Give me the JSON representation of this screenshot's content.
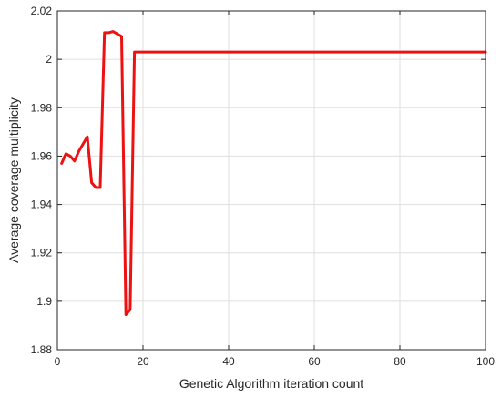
{
  "chart_data": {
    "type": "line",
    "title": "",
    "xlabel": "Genetic Algorithm iteration count",
    "ylabel": "Average coverage multiplicity",
    "xlim": [
      0,
      100
    ],
    "ylim": [
      1.88,
      2.02
    ],
    "xticks": [
      0,
      20,
      40,
      60,
      80,
      100
    ],
    "xtick_labels": [
      "0",
      "20",
      "40",
      "60",
      "80",
      "100"
    ],
    "yticks": [
      1.88,
      1.9,
      1.92,
      1.94,
      1.96,
      1.98,
      2.0,
      2.02
    ],
    "ytick_labels": [
      "1.88",
      "1.9",
      "1.92",
      "1.94",
      "1.96",
      "1.98",
      "2",
      "2.02"
    ],
    "grid": true,
    "legend": "none",
    "series": [
      {
        "color": "#ee1111",
        "x": [
          1,
          2,
          3,
          4,
          5,
          6,
          7,
          8,
          9,
          10,
          11,
          12,
          13,
          14,
          15,
          16,
          17,
          18,
          19,
          20,
          30,
          40,
          50,
          60,
          70,
          80,
          90,
          100
        ],
        "y": [
          1.957,
          1.961,
          1.96,
          1.958,
          1.962,
          1.965,
          1.968,
          1.949,
          1.947,
          1.947,
          2.011,
          2.011,
          2.0115,
          2.0105,
          2.0095,
          1.8945,
          1.8965,
          2.003,
          2.003,
          2.003,
          2.003,
          2.003,
          2.003,
          2.003,
          2.003,
          2.003,
          2.003,
          2.003
        ]
      }
    ]
  }
}
